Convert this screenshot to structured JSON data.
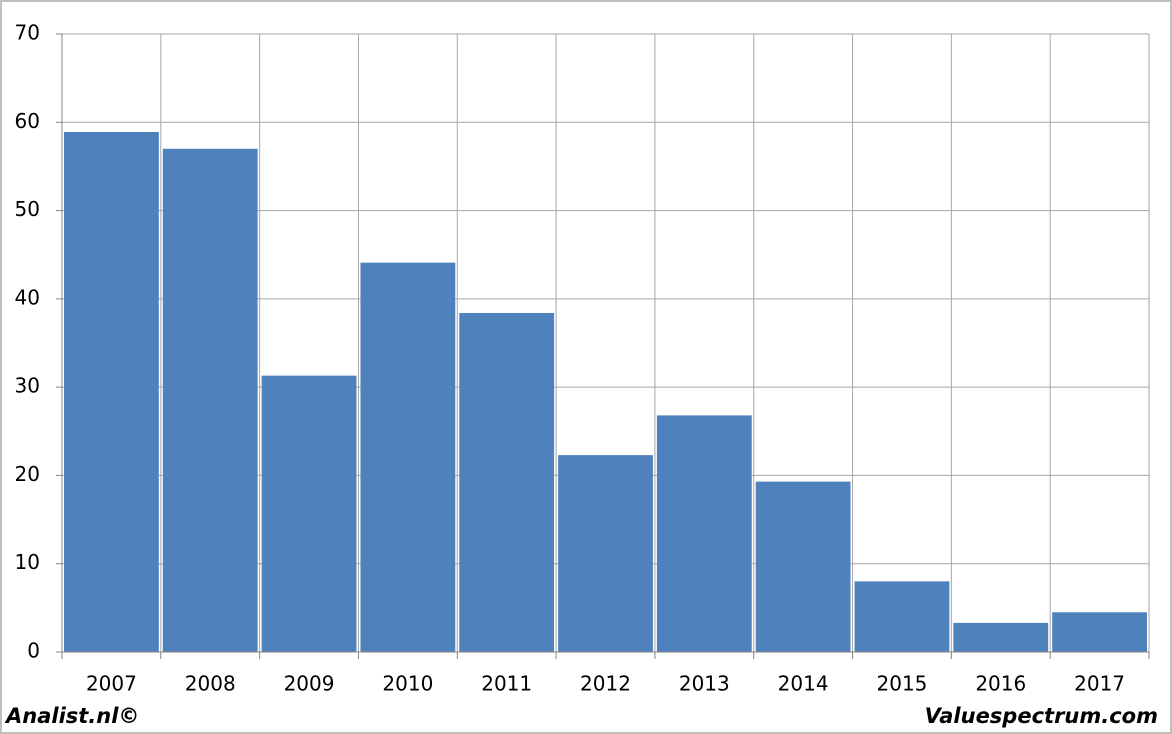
{
  "chart_data": {
    "type": "bar",
    "categories": [
      "2007",
      "2008",
      "2009",
      "2010",
      "2011",
      "2012",
      "2013",
      "2014",
      "2015",
      "2016",
      "2017"
    ],
    "values": [
      58.9,
      57.0,
      31.3,
      44.1,
      38.4,
      22.3,
      26.8,
      19.3,
      8.0,
      3.3,
      4.5
    ],
    "color": "#4f81bd",
    "ylim": [
      0,
      70
    ],
    "yticks": [
      0,
      10,
      20,
      30,
      40,
      50,
      60,
      70
    ],
    "grid": true,
    "annotations": [
      "Analist.nl©",
      "Valuespectrum.com"
    ]
  }
}
